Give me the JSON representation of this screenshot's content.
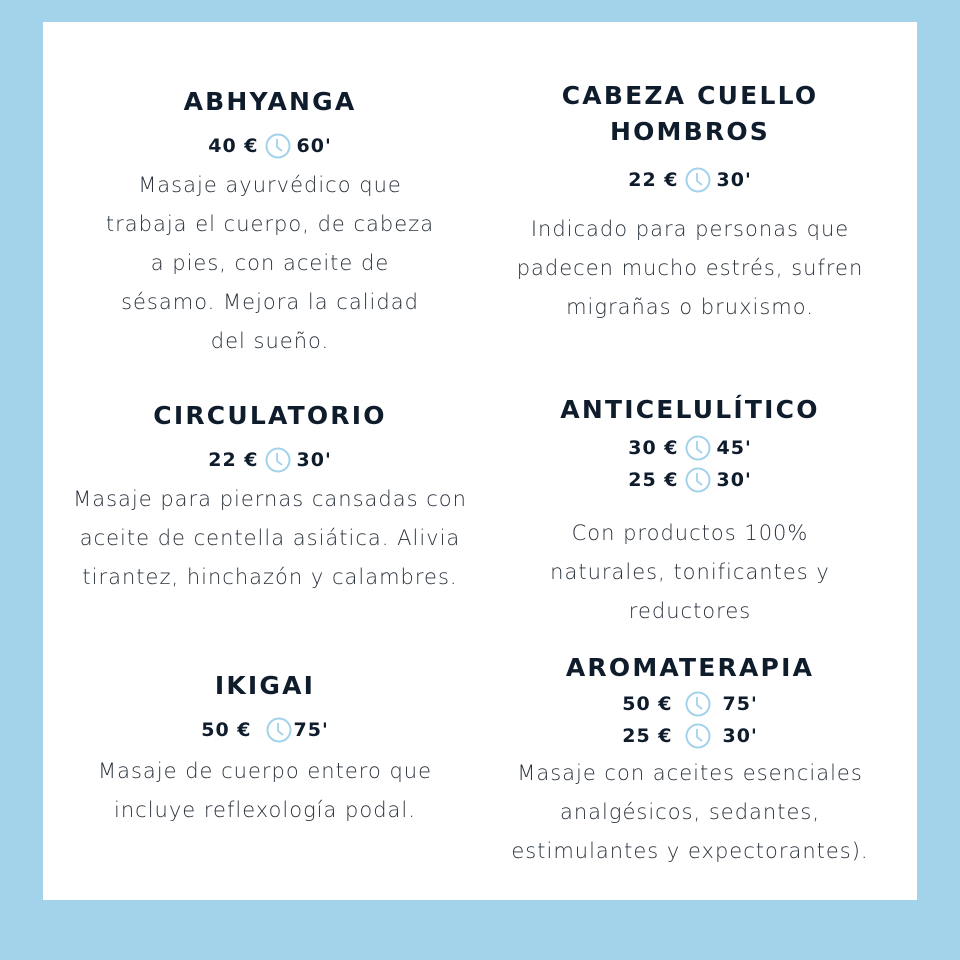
{
  "colors": {
    "border": "#a3d2eb",
    "title": "#0f1c2c",
    "clock": "#a3d2eb"
  },
  "clock_icon": "clock-icon",
  "services": [
    {
      "title": "ABHYANGA",
      "prices": [
        {
          "price": "40 €",
          "duration": "60'"
        }
      ],
      "description": "Masaje ayurvédico que trabaja el cuerpo, de cabeza a pies, con aceite de sésamo. Mejora la calidad del sueño."
    },
    {
      "title": "CABEZA CUELLO HOMBROS",
      "prices": [
        {
          "price": "22 €",
          "duration": "30'"
        }
      ],
      "description": "Indicado para personas que padecen mucho estrés, sufren migrañas o bruxismo."
    },
    {
      "title": "CIRCULATORIO",
      "prices": [
        {
          "price": "22 €",
          "duration": "30'"
        }
      ],
      "description": "Masaje para piernas cansadas con aceite de centella asiática. Alivia tirantez, hinchazón y calambres."
    },
    {
      "title": "ANTICELULÍTICO",
      "prices": [
        {
          "price": "30 €",
          "duration": "45'"
        },
        {
          "price": "25 €",
          "duration": "30'"
        }
      ],
      "description": "Con productos 100% naturales, tonificantes y reductores"
    },
    {
      "title": "IKIGAI",
      "prices": [
        {
          "price": "50 €",
          "duration": "75'"
        }
      ],
      "description": "Masaje de cuerpo entero que incluye reflexología podal."
    },
    {
      "title": "AROMATERAPIA",
      "prices": [
        {
          "price": "50 €",
          "duration": "75'"
        },
        {
          "price": "25 €",
          "duration": "30'"
        }
      ],
      "description": "Masaje con aceites esenciales analgésicos, sedantes, estimulantes y expectorantes)."
    }
  ]
}
